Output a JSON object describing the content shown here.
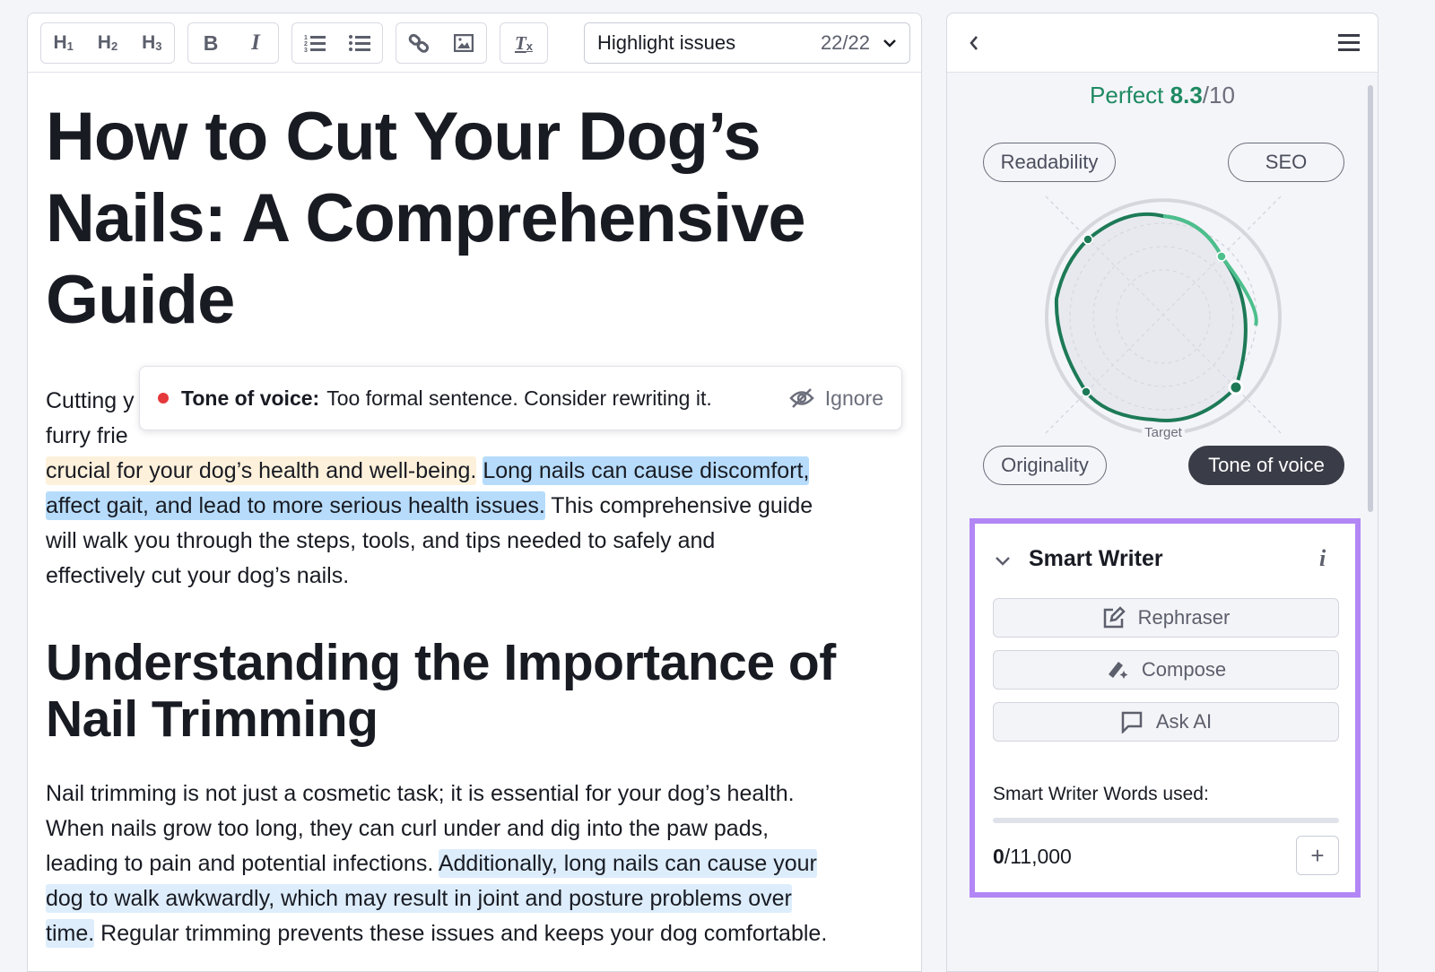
{
  "toolbar": {
    "headings": [
      "H",
      "H",
      "H"
    ],
    "heading_levels": [
      "1",
      "2",
      "3"
    ],
    "bold": "B",
    "italic": "I",
    "clear_format": "T",
    "clear_format_sub": "x",
    "highlight_select": {
      "label": "Highlight issues",
      "count": "22/22"
    }
  },
  "document": {
    "title": "How to Cut Your Dog’s Nails: A Comprehensive Guide",
    "paragraph1": [
      [
        {
          "t": "Cutting y",
          "h": ""
        }
      ],
      [
        {
          "t": "furry frie",
          "h": ""
        }
      ],
      [
        {
          "t": "crucial for your dog’s health and well-being.",
          "h": "yellow"
        },
        {
          "t": " ",
          "h": ""
        },
        {
          "t": "Long nails can cause discomfort,",
          "h": "blue"
        }
      ],
      [
        {
          "t": "affect gait, and lead to more serious health issues.",
          "h": "blue"
        },
        {
          "t": " This comprehensive guide",
          "h": ""
        }
      ],
      [
        {
          "t": "will walk you through the steps, tools, and tips needed to safely and",
          "h": ""
        }
      ],
      [
        {
          "t": "effectively cut your dog’s nails.",
          "h": ""
        }
      ]
    ],
    "heading2": "Understanding the Importance of Nail Trimming",
    "paragraph2": [
      [
        {
          "t": "Nail trimming is not just a cosmetic task; it is essential for your dog’s health.",
          "h": ""
        }
      ],
      [
        {
          "t": "When nails grow too long, they can curl under and dig into the paw pads,",
          "h": ""
        }
      ],
      [
        {
          "t": "leading to pain and potential infections. ",
          "h": ""
        },
        {
          "t": "Additionally, long nails can cause your",
          "h": "lightblue"
        }
      ],
      [
        {
          "t": "dog to walk awkwardly, which may result in joint and posture problems over",
          "h": "lightblue"
        }
      ],
      [
        {
          "t": "time.",
          "h": "lightblue"
        },
        {
          "t": " Regular trimming prevents these issues and keeps your dog comfortable.",
          "h": ""
        }
      ]
    ]
  },
  "issue_popup": {
    "category": "Tone of voice:",
    "message": "Too formal sentence. Consider rewriting it.",
    "ignore_label": "Ignore",
    "severity_color": "#e5383b"
  },
  "sidebar": {
    "score": {
      "label": "Perfect",
      "value": "8.3",
      "max": "/10"
    },
    "pills": {
      "readability": "Readability",
      "seo": "SEO",
      "originality": "Originality",
      "tone": "Tone of voice"
    },
    "active_pill": "Tone of voice",
    "radar_target_label": "Target",
    "smart_writer": {
      "title": "Smart Writer",
      "buttons": {
        "rephraser": "Rephraser",
        "compose": "Compose",
        "ask_ai": "Ask AI"
      },
      "usage_label": "Smart Writer Words used:",
      "used": "0",
      "limit": "/11,000",
      "usage_fraction": 0
    }
  },
  "colors": {
    "accent_green": "#1f8a62",
    "highlight_border": "#b286f5",
    "yellow_highlight": "#fdf1db",
    "blue_highlight": "#b7dcfb"
  }
}
